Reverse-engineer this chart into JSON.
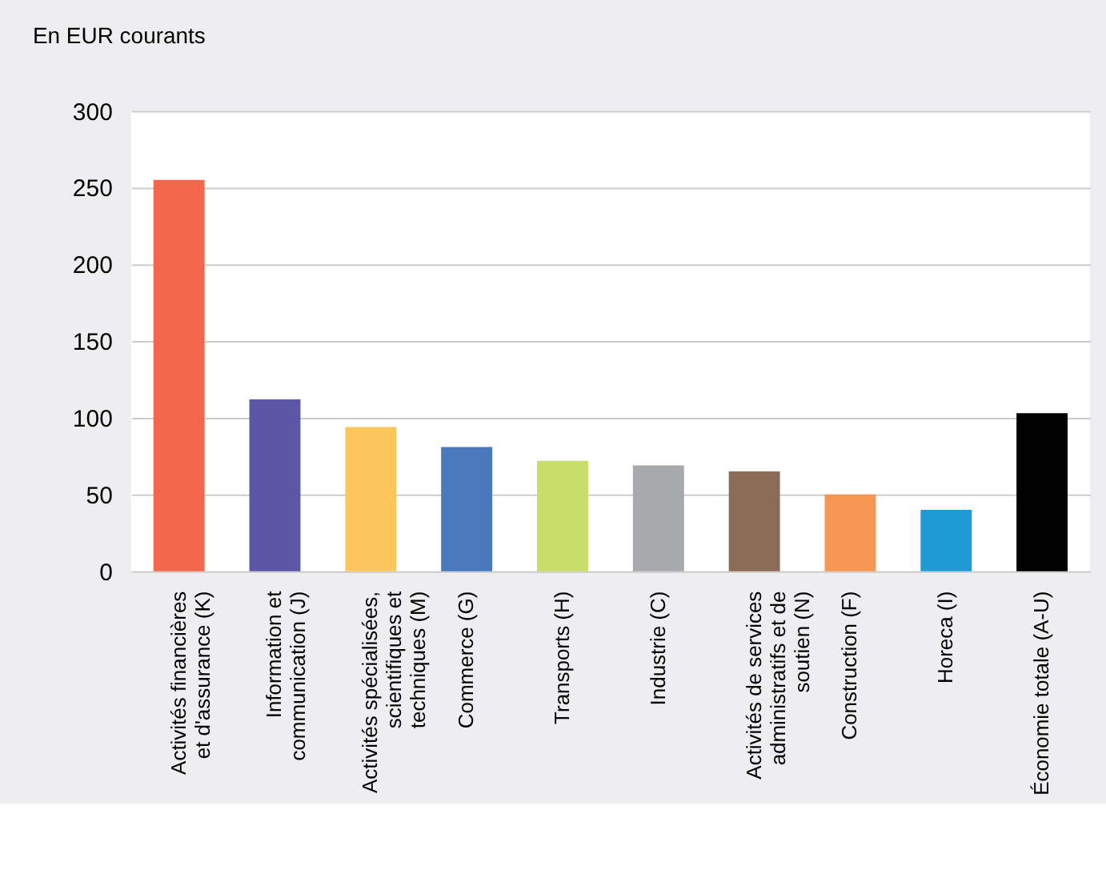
{
  "chart_data": {
    "type": "bar",
    "ylabel": "En EUR courants",
    "categories": [
      "Activités financières et d'assurance (K)",
      "Information et communication (J)",
      "Activités spécialisées, scientifiques et techniques (M)",
      "Commerce (G)",
      "Transports (H)",
      "Industrie (C)",
      "Activités de services administratifs et de soutien (N)",
      "Construction (F)",
      "Horeca (I)",
      "Économie totale (A-U)"
    ],
    "values": [
      255,
      112,
      94,
      81,
      72,
      69,
      65,
      50,
      40,
      103
    ],
    "colors": [
      "#f1694a",
      "#5b56a6",
      "#fdc55e",
      "#4879bd",
      "#c9dd6a",
      "#a7a8ab",
      "#8b6a56",
      "#f69652",
      "#1e9bd7",
      "#000000"
    ],
    "ylim": [
      0,
      300
    ],
    "yticks": [
      0,
      50,
      100,
      150,
      200,
      250,
      300
    ],
    "grid": "y"
  }
}
